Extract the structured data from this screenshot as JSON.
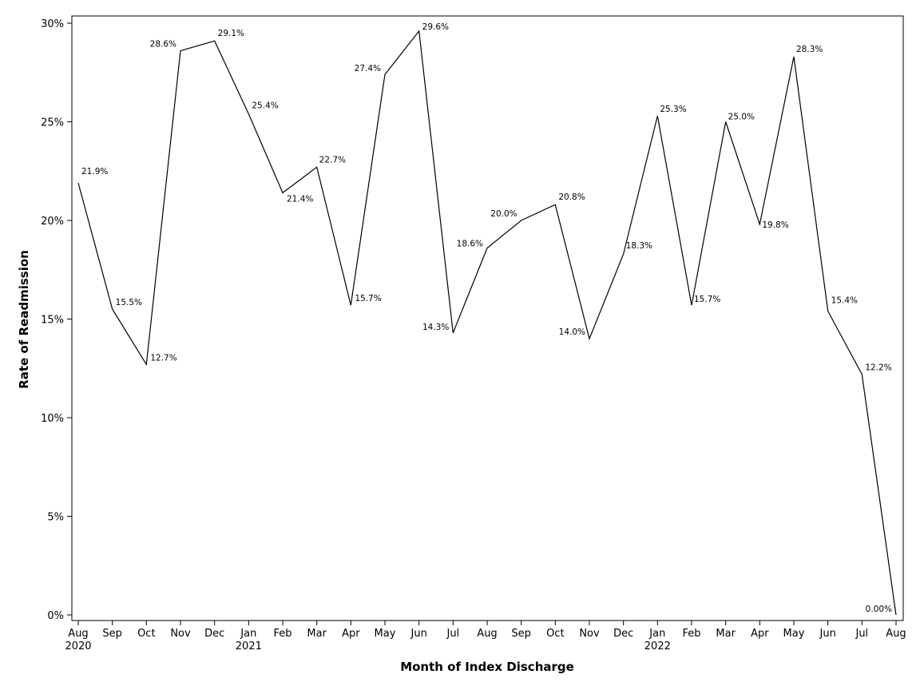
{
  "chart_data": {
    "type": "line",
    "title": "",
    "xlabel": "Month of Index Discharge",
    "ylabel": "Rate of Readmission",
    "ylim": [
      0,
      30
    ],
    "grid": false,
    "legend": "none",
    "line_color": "#000000",
    "x": [
      "2020-08",
      "2020-09",
      "2020-10",
      "2020-11",
      "2020-12",
      "2021-01",
      "2021-02",
      "2021-03",
      "2021-04",
      "2021-05",
      "2021-06",
      "2021-07",
      "2021-08",
      "2021-09",
      "2021-10",
      "2021-11",
      "2021-12",
      "2022-01",
      "2022-02",
      "2022-03",
      "2022-04",
      "2022-05",
      "2022-06",
      "2022-07",
      "2022-08"
    ],
    "x_tick_labels": [
      {
        "month": "Aug",
        "year": "2020"
      },
      {
        "month": "Sep",
        "year": ""
      },
      {
        "month": "Oct",
        "year": ""
      },
      {
        "month": "Nov",
        "year": ""
      },
      {
        "month": "Dec",
        "year": ""
      },
      {
        "month": "Jan",
        "year": "2021"
      },
      {
        "month": "Feb",
        "year": ""
      },
      {
        "month": "Mar",
        "year": ""
      },
      {
        "month": "Apr",
        "year": ""
      },
      {
        "month": "May",
        "year": ""
      },
      {
        "month": "Jun",
        "year": ""
      },
      {
        "month": "Jul",
        "year": ""
      },
      {
        "month": "Aug",
        "year": ""
      },
      {
        "month": "Sep",
        "year": ""
      },
      {
        "month": "Oct",
        "year": ""
      },
      {
        "month": "Nov",
        "year": ""
      },
      {
        "month": "Dec",
        "year": ""
      },
      {
        "month": "Jan",
        "year": "2022"
      },
      {
        "month": "Feb",
        "year": ""
      },
      {
        "month": "Mar",
        "year": ""
      },
      {
        "month": "Apr",
        "year": ""
      },
      {
        "month": "May",
        "year": ""
      },
      {
        "month": "Jun",
        "year": ""
      },
      {
        "month": "Jul",
        "year": ""
      },
      {
        "month": "Aug",
        "year": ""
      }
    ],
    "y_ticks": [
      0,
      5,
      10,
      15,
      20,
      25,
      30
    ],
    "y_tick_labels": [
      "0%",
      "5%",
      "10%",
      "15%",
      "20%",
      "25%",
      "30%"
    ],
    "values": [
      21.9,
      15.5,
      12.7,
      28.6,
      29.1,
      25.4,
      21.4,
      22.7,
      15.7,
      27.4,
      29.6,
      14.3,
      18.6,
      20.0,
      20.8,
      14.0,
      18.3,
      25.3,
      15.7,
      25.0,
      19.8,
      28.3,
      15.4,
      12.2,
      0.0
    ],
    "data_labels": [
      "21.9%",
      "15.5%",
      "12.7%",
      "28.6%",
      "29.1%",
      "25.4%",
      "21.4%",
      "22.7%",
      "15.7%",
      "27.4%",
      "29.6%",
      "14.3%",
      "18.6%",
      "20.0%",
      "20.8%",
      "14.0%",
      "18.3%",
      "25.3%",
      "15.7%",
      "25.0%",
      "19.8%",
      "28.3%",
      "15.4%",
      "12.2%",
      "0.00%"
    ]
  }
}
